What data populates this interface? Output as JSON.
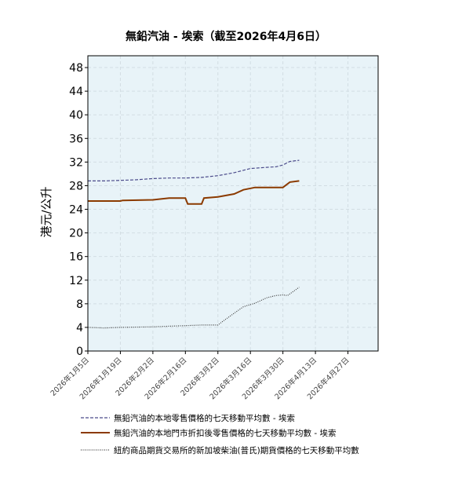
{
  "chart_data": {
    "type": "line",
    "title": "無鉛汽油 - 埃索（截至2026年4月6日）",
    "ylabel": "港元/公升",
    "xlabel": "",
    "ylim": [
      0,
      50
    ],
    "y_ticks": [
      0,
      4,
      8,
      12,
      16,
      20,
      24,
      28,
      32,
      36,
      40,
      44,
      48
    ],
    "x_range": [
      "2026-01-05",
      "2026-05-10"
    ],
    "x_tick_labels": [
      "2026年1月5日",
      "2026年1月19日",
      "2026年2月2日",
      "2026年2月16日",
      "2026年3月2日",
      "2026年3月16日",
      "2026年3月30日",
      "2026年4月13日",
      "2026年4月27日"
    ],
    "x_tick_dates": [
      "2026-01-05",
      "2026-01-19",
      "2026-02-02",
      "2026-02-16",
      "2026-03-02",
      "2026-03-16",
      "2026-03-30",
      "2026-04-13",
      "2026-04-27"
    ],
    "grid": true,
    "legend_position": "bottom",
    "background_color": "#e8f3f8",
    "series": [
      {
        "name": "無鉛汽油的本地零售價格的七天移動平均數 - 埃索",
        "color": "#4a4a8a",
        "style": "dashed",
        "points": [
          [
            "2026-01-05",
            28.8
          ],
          [
            "2026-01-12",
            28.8
          ],
          [
            "2026-01-19",
            28.9
          ],
          [
            "2026-01-26",
            29.0
          ],
          [
            "2026-02-02",
            29.2
          ],
          [
            "2026-02-09",
            29.3
          ],
          [
            "2026-02-16",
            29.3
          ],
          [
            "2026-02-23",
            29.4
          ],
          [
            "2026-03-02",
            29.7
          ],
          [
            "2026-03-09",
            30.2
          ],
          [
            "2026-03-16",
            30.9
          ],
          [
            "2026-03-23",
            31.1
          ],
          [
            "2026-03-27",
            31.2
          ],
          [
            "2026-03-30",
            31.5
          ],
          [
            "2026-04-02",
            32.1
          ],
          [
            "2026-04-06",
            32.3
          ]
        ]
      },
      {
        "name": "無鉛汽油的本地門市折扣後零售價格的七天移動平均數 - 埃索",
        "color": "#8b3a00",
        "style": "solid",
        "points": [
          [
            "2026-01-05",
            25.4
          ],
          [
            "2026-01-19",
            25.4
          ],
          [
            "2026-01-20",
            25.5
          ],
          [
            "2026-02-02",
            25.6
          ],
          [
            "2026-02-09",
            25.9
          ],
          [
            "2026-02-16",
            25.9
          ],
          [
            "2026-02-17",
            24.9
          ],
          [
            "2026-02-23",
            24.9
          ],
          [
            "2026-02-24",
            25.9
          ],
          [
            "2026-03-02",
            26.1
          ],
          [
            "2026-03-09",
            26.6
          ],
          [
            "2026-03-13",
            27.3
          ],
          [
            "2026-03-18",
            27.7
          ],
          [
            "2026-03-30",
            27.7
          ],
          [
            "2026-04-02",
            28.6
          ],
          [
            "2026-04-06",
            28.8
          ]
        ]
      },
      {
        "name": "紐約商品期貨交易所的新加坡柴油(普氏)期貨價格的七天移動平均數",
        "color": "#404040",
        "style": "dotted",
        "points": [
          [
            "2026-01-05",
            4.0
          ],
          [
            "2026-01-12",
            3.9
          ],
          [
            "2026-01-19",
            4.0
          ],
          [
            "2026-02-02",
            4.1
          ],
          [
            "2026-02-09",
            4.2
          ],
          [
            "2026-02-16",
            4.3
          ],
          [
            "2026-02-23",
            4.4
          ],
          [
            "2026-03-02",
            4.4
          ],
          [
            "2026-03-04",
            5.0
          ],
          [
            "2026-03-09",
            6.4
          ],
          [
            "2026-03-13",
            7.5
          ],
          [
            "2026-03-18",
            8.1
          ],
          [
            "2026-03-23",
            9.0
          ],
          [
            "2026-03-27",
            9.4
          ],
          [
            "2026-03-30",
            9.5
          ],
          [
            "2026-04-01",
            9.4
          ],
          [
            "2026-04-06",
            10.8
          ]
        ]
      }
    ]
  }
}
